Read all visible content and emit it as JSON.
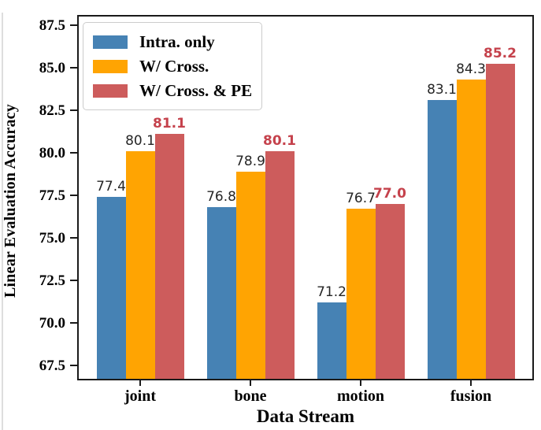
{
  "chart_data": {
    "type": "bar",
    "title": "",
    "xlabel": "Data Stream",
    "ylabel": "Linear Evaluation Accuracy",
    "categories": [
      "joint",
      "bone",
      "motion",
      "fusion"
    ],
    "series": [
      {
        "name": "Intra. only",
        "color": "#4682B4",
        "values": [
          77.4,
          76.8,
          71.2,
          83.1
        ],
        "label_color": "#262626",
        "label_bold": false
      },
      {
        "name": "W/ Cross.",
        "color": "#FFA402",
        "values": [
          80.1,
          78.9,
          76.7,
          84.3
        ],
        "label_color": "#262626",
        "label_bold": false
      },
      {
        "name": "W/ Cross. & PE",
        "color": "#CD5C5C",
        "values": [
          81.1,
          80.1,
          77.0,
          85.2
        ],
        "label_color": "#C5424C",
        "label_bold": true
      }
    ],
    "ylim": [
      66.7,
      88.0
    ],
    "yticks": [
      87.5,
      85.0,
      82.5,
      80.0,
      77.5,
      75.0,
      72.5,
      70.0,
      67.5
    ],
    "legend_position": "upper left",
    "grid": false,
    "bar_value_labels_shown": true
  },
  "ui": {
    "frame_color": "#1a1a1a",
    "legend_border_color": "#cccccc",
    "background_color": "#ffffff",
    "black_label_color": "#262626",
    "red_label_color": "#C5424C",
    "edge_artifact_color": "#dedede"
  }
}
